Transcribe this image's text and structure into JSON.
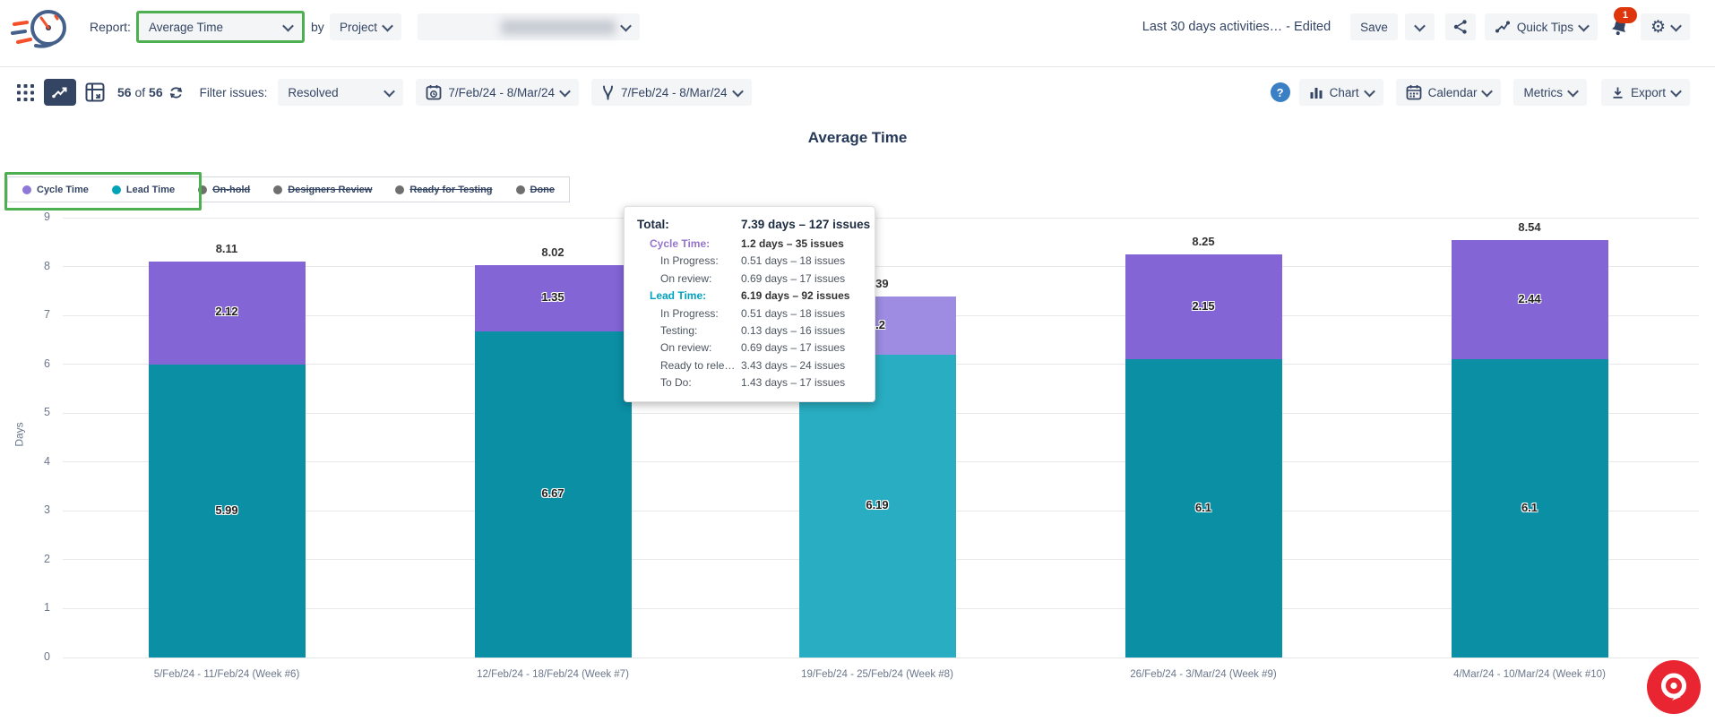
{
  "colors": {
    "cycle": "#8365D6",
    "cycle_hover": "#9D8CE2",
    "lead": "#0B8FA5",
    "lead_hover": "#29ADC2",
    "inactive_dot": "#6F6F6F",
    "highlight_green": "#4CAF50",
    "accent_navy": "#344563",
    "fab_red": "#E92532",
    "badge_red": "#DE350B"
  },
  "header": {
    "report_label": "Report:",
    "report_value": "Average Time",
    "by_label": "by",
    "group_by_value": "Project",
    "doc_title": "Last 30 days activities… - Edited",
    "save_label": "Save",
    "quick_tips_label": "Quick Tips",
    "notification_count": "1"
  },
  "toolbar": {
    "count_current": "56",
    "count_of": "of",
    "count_total": "56",
    "filter_label": "Filter issues:",
    "filter_value": "Resolved",
    "date_range_created": "7/Feb/24 - 8/Mar/24",
    "date_range_resolved": "7/Feb/24 - 8/Mar/24",
    "help_label": "?",
    "chart_label": "Chart",
    "calendar_label": "Calendar",
    "metrics_label": "Metrics",
    "export_label": "Export"
  },
  "icons": {
    "logo": "stopwatch-speed-logo",
    "header": [
      "share-icon",
      "trend-icon",
      "bell-icon",
      "gear-icon",
      "chevron-down-icon"
    ],
    "toolbar": [
      "grid-view-icon",
      "line-chart-view-icon",
      "pivot-view-icon",
      "refresh-icon",
      "calendar-clock-icon",
      "fork-icon",
      "help-icon",
      "bar-chart-icon",
      "calendar-icon",
      "download-icon"
    ],
    "fab": "feedback-bubble-icon"
  },
  "chart_data": {
    "type": "bar",
    "stacked": true,
    "title": "Average Time",
    "ylabel": "Days",
    "ylim": [
      0,
      9
    ],
    "yticks": [
      0,
      1,
      2,
      3,
      4,
      5,
      6,
      7,
      8,
      9
    ],
    "grid": true,
    "legend_position": "top-left",
    "categories": [
      "5/Feb/24 - 11/Feb/24 (Week #6)",
      "12/Feb/24 - 18/Feb/24 (Week #7)",
      "19/Feb/24 - 25/Feb/24 (Week #8)",
      "26/Feb/24 - 3/Mar/24 (Week #9)",
      "4/Mar/24 - 10/Mar/24 (Week #10)"
    ],
    "series": [
      {
        "name": "Cycle Time",
        "values": [
          2.12,
          1.35,
          1.2,
          2.15,
          2.44
        ]
      },
      {
        "name": "Lead Time",
        "values": [
          5.99,
          6.67,
          6.19,
          6.1,
          6.1
        ]
      }
    ],
    "totals": [
      8.11,
      8.02,
      7.39,
      8.25,
      8.54
    ],
    "hovered_bar_index": 2
  },
  "legend": {
    "items": [
      {
        "label": "Cycle Time",
        "active": true,
        "dot": "#8F79D8"
      },
      {
        "label": "Lead Time",
        "active": true,
        "dot": "#00A3B8"
      },
      {
        "label": "On-hold",
        "active": false,
        "dot": "#6F6F6F"
      },
      {
        "label": "Designers Review",
        "active": false,
        "dot": "#6F6F6F"
      },
      {
        "label": "Ready for Testing",
        "active": false,
        "dot": "#6F6F6F"
      },
      {
        "label": "Done",
        "active": false,
        "dot": "#6F6F6F"
      }
    ]
  },
  "tooltip": {
    "rows": [
      {
        "label": "Total:",
        "value": "7.39 days – 127 issues",
        "level": "total"
      },
      {
        "label": "Cycle Time:",
        "value": "1.2 days – 35 issues",
        "level": "series",
        "color": "#9575CD"
      },
      {
        "label": "In Progress:",
        "value": "0.51 days – 18 issues",
        "level": "status"
      },
      {
        "label": "On review:",
        "value": "0.69 days – 17 issues",
        "level": "status"
      },
      {
        "label": "Lead Time:",
        "value": "6.19 days – 92 issues",
        "level": "series",
        "color": "#00A3C0"
      },
      {
        "label": "In Progress:",
        "value": "0.51 days – 18 issues",
        "level": "status"
      },
      {
        "label": "Testing:",
        "value": "0.13 days – 16 issues",
        "level": "status"
      },
      {
        "label": "On review:",
        "value": "0.69 days – 17 issues",
        "level": "status"
      },
      {
        "label": "Ready to rele…",
        "value": "3.43 days – 24 issues",
        "level": "status"
      },
      {
        "label": "To Do:",
        "value": "1.43 days – 17 issues",
        "level": "status"
      }
    ]
  }
}
